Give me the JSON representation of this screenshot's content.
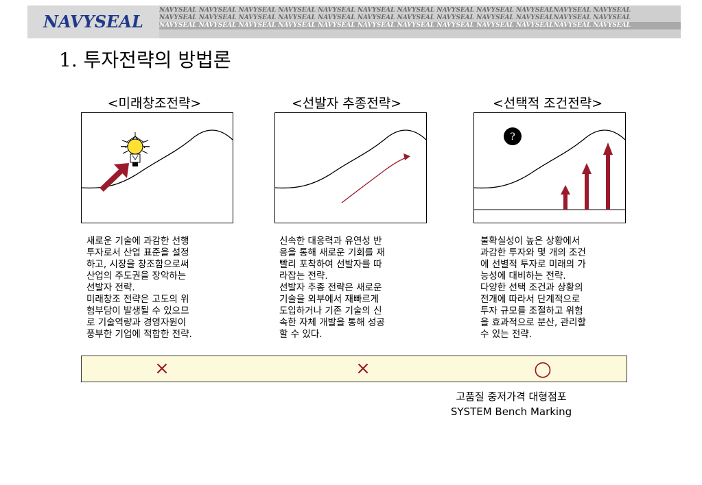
{
  "header": {
    "brand": "NAVYSEAL",
    "watermark_rows": [
      "NAVYSEAL NAVYSEAL NAVYSEAL NAVYSEAL NAVYSEAL NAVYSEAL NAVYSEAL NAVYSEAL NAVYSEAL NAVYSEALNAVYSEAL NAVYSEAL",
      "NAVYSEAL NAVYSEAL NAVYSEAL NAVYSEAL NAVYSEAL NAVYSEAL NAVYSEAL NAVYSEAL NAVYSEAL NAVYSEALNAVYSEAL NAVYSEAL",
      "NAVYSEAL NAVYSEAL NAVYSEAL NAVYSEAL NAVYSEAL NAVYSEAL NAVYSEAL NAVYSEAL NAVYSEAL NAVYSEALNAVYSEAL NAVYSEAL"
    ]
  },
  "title": "1. 투자전략의 방법론",
  "columns": [
    {
      "title": "<미래창조전략>",
      "icon": "lightbulb-icon",
      "description": "새로운 기술에 과감한 선행\n투자로서 산업 표준을 설정\n하고, 시장을 창조함으로써\n산업의 주도권을 장악하는\n선발자 전략.\n미래창조 전략은 고도의 위\n험부담이 발생될 수 있으므\n로 기술역량과 경영자원이\n풍부한 기업에 적합한 전략."
    },
    {
      "title": "<선발자 추종전략>",
      "icon": "follow-curve-arrow",
      "description": "신속한 대응력과 유연성 반\n응을 통해 새로운 기회를 재\n빨리 포착하여 선발자를 따\n라잡는 전략.\n선발자 추종 전략은 새로운\n기술을 외부에서 재빠르게\n도입하거나 기존 기술의 신\n속한 자체 개발을 통해 성공\n할 수 있다."
    },
    {
      "title": "<선택적 조건전략>",
      "icon": "question-icon",
      "badge": "?",
      "description": "불확실성이 높은 상황에서\n과감한 투자와 몇 개의 조건\n에 선별적 투자로 미래의 가\n능성에 대비하는 전략.\n다양한 선택 조건과 상황의\n전개에 따라서 단계적으로\n투자 규모를 조절하고 위험\n을 효과적으로 분산, 관리할\n수 있는 전략."
    }
  ],
  "evaluation": [
    "×",
    "×",
    "○"
  ],
  "note": {
    "line1": "고품질 중저가격 대형점포",
    "line2": "SYSTEM Bench Marking"
  },
  "colors": {
    "brand_text": "#1f3a8a",
    "arrow": "#9b1b2c",
    "strip_bg": "#fdfadb"
  }
}
